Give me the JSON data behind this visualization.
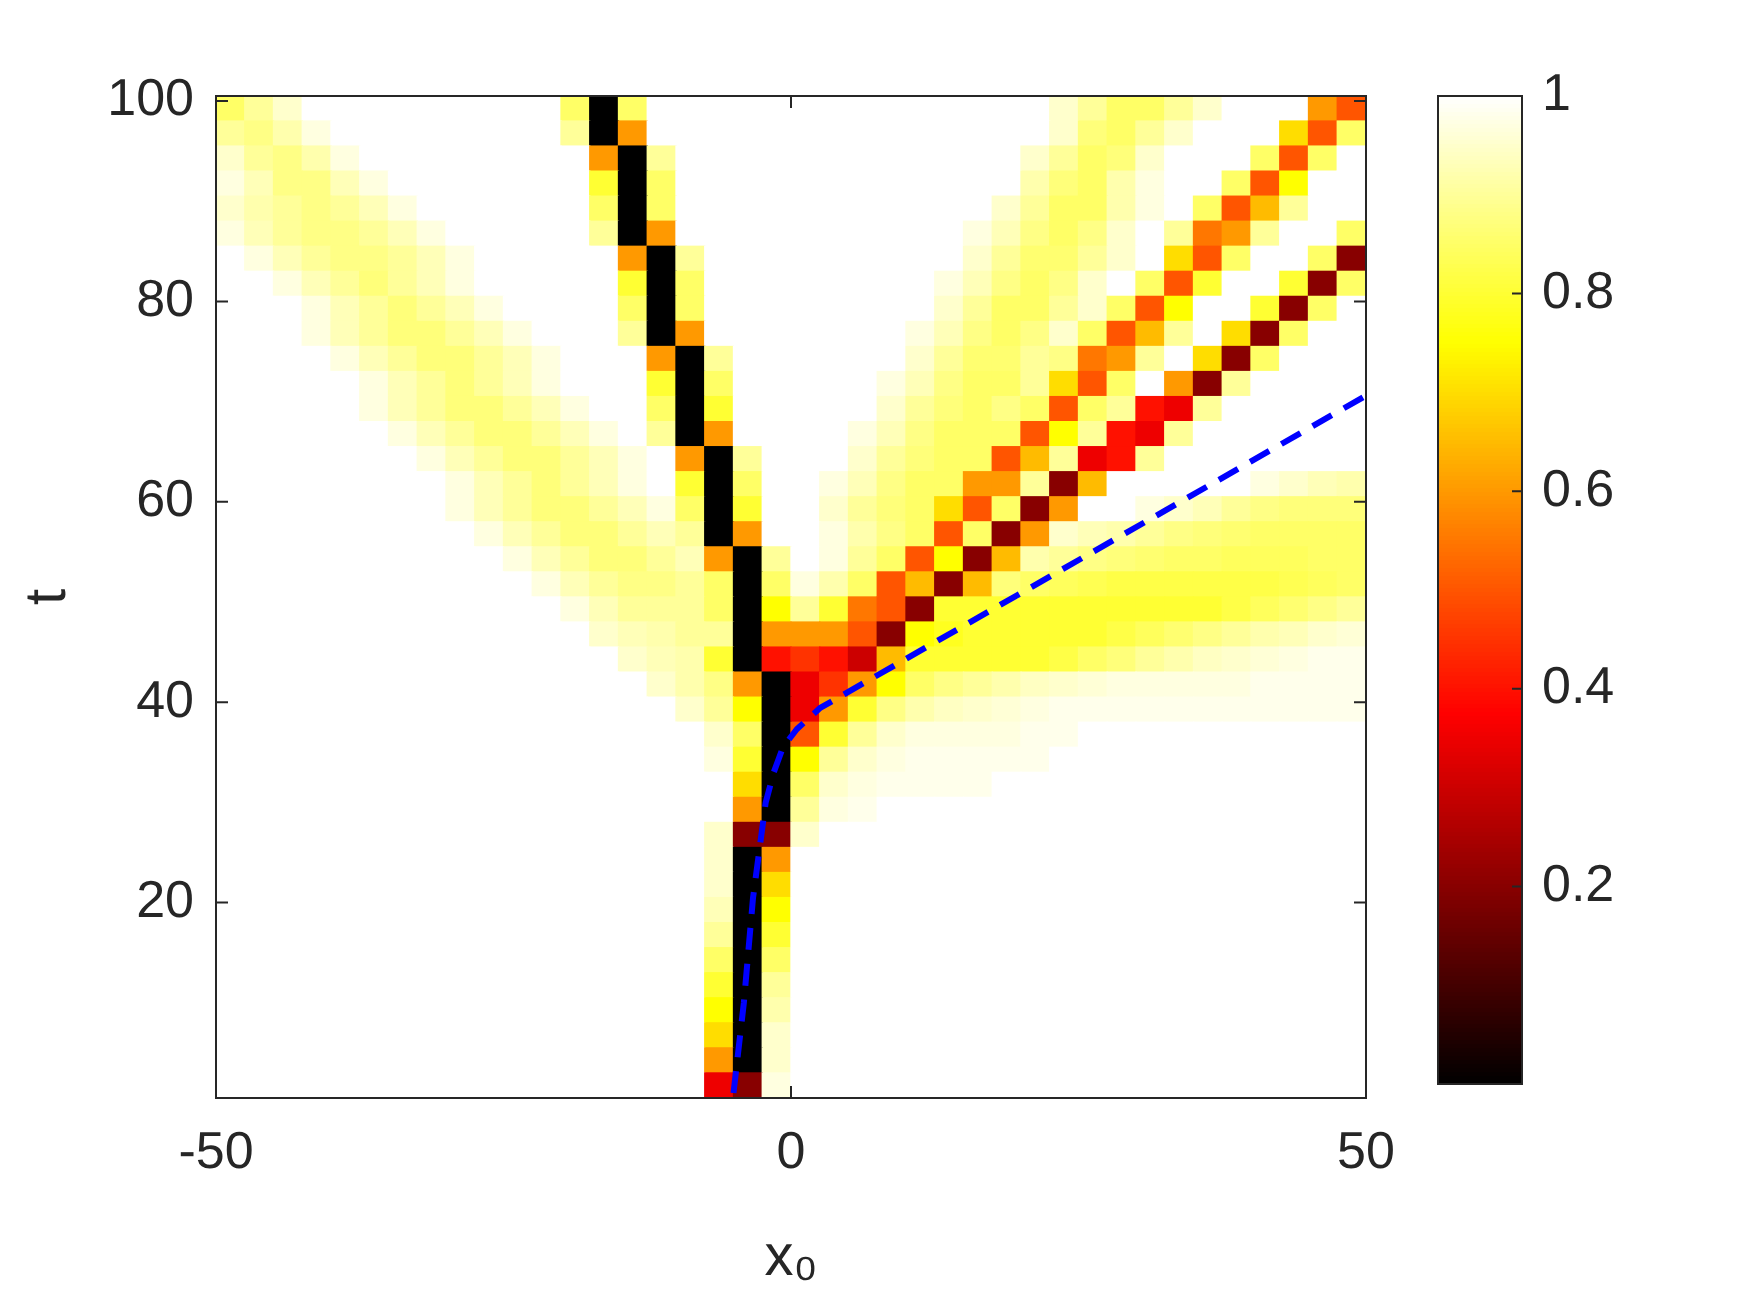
{
  "chart_data": {
    "type": "heatmap",
    "xlabel": "x₀",
    "ylabel": "t",
    "xlim": [
      -50,
      50
    ],
    "xticks": [
      -50,
      0,
      50
    ],
    "ylim": [
      0.5,
      100.5
    ],
    "yticks": [
      20,
      40,
      60,
      80,
      100
    ],
    "clim": [
      0,
      1
    ],
    "cticks": [
      0.2,
      0.4,
      0.6,
      0.8,
      1
    ],
    "cells": [
      [
        0.85,
        0.9,
        0.95,
        1,
        1,
        1,
        1,
        1,
        1,
        1,
        1,
        1,
        0.85,
        0,
        0.85,
        1,
        1,
        1,
        1,
        1,
        1,
        1,
        1,
        1,
        1,
        1,
        1,
        1,
        1,
        0.95,
        0.9,
        0.85,
        0.85,
        0.9,
        0.95,
        1,
        1,
        1,
        0.6,
        0.5
      ],
      [
        0.9,
        0.88,
        0.92,
        0.97,
        1,
        1,
        1,
        1,
        1,
        1,
        1,
        1,
        0.9,
        0,
        0.6,
        1,
        1,
        1,
        1,
        1,
        1,
        1,
        1,
        1,
        1,
        1,
        1,
        1,
        1,
        0.95,
        0.87,
        0.85,
        0.9,
        0.95,
        1,
        1,
        1,
        0.7,
        0.5,
        0.85
      ],
      [
        0.95,
        0.9,
        0.88,
        0.92,
        0.97,
        1,
        1,
        1,
        1,
        1,
        1,
        1,
        1,
        0.6,
        0,
        0.9,
        1,
        1,
        1,
        1,
        1,
        1,
        1,
        1,
        1,
        1,
        1,
        1,
        0.95,
        0.9,
        0.85,
        0.87,
        0.95,
        1,
        1,
        1,
        0.85,
        0.5,
        0.85,
        1
      ],
      [
        0.97,
        0.93,
        0.88,
        0.88,
        0.93,
        0.97,
        1,
        1,
        1,
        1,
        1,
        1,
        1,
        0.8,
        0,
        0.85,
        1,
        1,
        1,
        1,
        1,
        1,
        1,
        1,
        1,
        1,
        1,
        1,
        0.92,
        0.87,
        0.85,
        0.92,
        0.97,
        1,
        1,
        0.85,
        0.5,
        0.75,
        1,
        1
      ],
      [
        0.95,
        0.92,
        0.9,
        0.88,
        0.9,
        0.93,
        0.97,
        1,
        1,
        1,
        1,
        1,
        1,
        0.85,
        0,
        0.85,
        1,
        1,
        1,
        1,
        1,
        1,
        1,
        1,
        1,
        1,
        1,
        0.95,
        0.9,
        0.85,
        0.85,
        0.92,
        0.97,
        1,
        0.85,
        0.5,
        0.65,
        0.9,
        1,
        1
      ],
      [
        0.97,
        0.93,
        0.9,
        0.88,
        0.88,
        0.9,
        0.93,
        0.97,
        1,
        1,
        1,
        1,
        1,
        0.9,
        0,
        0.6,
        1,
        1,
        1,
        1,
        1,
        1,
        1,
        1,
        1,
        1,
        0.97,
        0.93,
        0.88,
        0.85,
        0.88,
        0.95,
        1,
        0.9,
        0.55,
        0.6,
        0.9,
        1,
        1,
        0.85
      ],
      [
        1,
        0.97,
        0.93,
        0.9,
        0.88,
        0.88,
        0.9,
        0.93,
        0.97,
        1,
        1,
        1,
        1,
        1,
        0.6,
        0,
        0.9,
        1,
        1,
        1,
        1,
        1,
        1,
        1,
        1,
        1,
        0.95,
        0.9,
        0.86,
        0.86,
        0.9,
        0.95,
        1,
        0.7,
        0.5,
        0.85,
        1,
        1,
        0.85,
        0.2
      ],
      [
        1,
        1,
        0.97,
        0.93,
        0.9,
        0.87,
        0.9,
        0.93,
        0.97,
        1,
        1,
        1,
        1,
        1,
        0.8,
        0,
        0.85,
        1,
        1,
        1,
        1,
        1,
        1,
        1,
        1,
        0.97,
        0.93,
        0.88,
        0.85,
        0.88,
        0.95,
        1,
        0.85,
        0.5,
        0.8,
        1,
        1,
        0.8,
        0.2,
        0.85
      ],
      [
        1,
        1,
        1,
        0.97,
        0.93,
        0.9,
        0.87,
        0.9,
        0.93,
        0.97,
        1,
        1,
        1,
        1,
        0.85,
        0,
        0.85,
        1,
        1,
        1,
        1,
        1,
        1,
        1,
        1,
        0.95,
        0.9,
        0.85,
        0.85,
        0.9,
        0.95,
        0.85,
        0.5,
        0.75,
        1,
        1,
        0.8,
        0.2,
        0.85,
        1
      ],
      [
        1,
        1,
        1,
        0.97,
        0.93,
        0.9,
        0.87,
        0.87,
        0.9,
        0.93,
        0.97,
        1,
        1,
        1,
        0.9,
        0,
        0.6,
        1,
        1,
        1,
        1,
        1,
        1,
        1,
        0.97,
        0.93,
        0.88,
        0.85,
        0.88,
        0.95,
        0.85,
        0.5,
        0.65,
        0.9,
        1,
        0.7,
        0.2,
        0.85,
        1,
        1
      ],
      [
        1,
        1,
        1,
        1,
        0.97,
        0.93,
        0.9,
        0.87,
        0.87,
        0.9,
        0.93,
        0.97,
        1,
        1,
        1,
        0.6,
        0,
        0.9,
        1,
        1,
        1,
        1,
        1,
        1,
        0.95,
        0.9,
        0.86,
        0.86,
        0.9,
        0.88,
        0.55,
        0.6,
        0.9,
        1,
        0.7,
        0.2,
        0.85,
        1,
        1,
        1
      ],
      [
        1,
        1,
        1,
        1,
        1,
        0.97,
        0.93,
        0.9,
        0.87,
        0.9,
        0.93,
        0.97,
        1,
        1,
        1,
        0.8,
        0,
        0.85,
        1,
        1,
        1,
        1,
        1,
        0.97,
        0.93,
        0.88,
        0.85,
        0.85,
        0.9,
        0.7,
        0.5,
        0.85,
        1,
        0.6,
        0.2,
        0.9,
        1,
        1,
        1,
        1
      ],
      [
        1,
        1,
        1,
        1,
        1,
        0.97,
        0.93,
        0.9,
        0.87,
        0.87,
        0.9,
        0.93,
        0.97,
        1,
        1,
        0.85,
        0,
        0.8,
        1,
        1,
        1,
        1,
        1,
        0.95,
        0.9,
        0.87,
        0.85,
        0.88,
        0.85,
        0.5,
        0.85,
        0.9,
        0.4,
        0.35,
        0.9,
        1,
        1,
        1,
        1,
        1
      ],
      [
        1,
        1,
        1,
        1,
        1,
        1,
        0.97,
        0.93,
        0.9,
        0.87,
        0.87,
        0.9,
        0.93,
        0.97,
        1,
        0.9,
        0,
        0.6,
        1,
        1,
        1,
        1,
        0.97,
        0.93,
        0.88,
        0.85,
        0.85,
        0.85,
        0.5,
        0.75,
        0.9,
        0.4,
        0.35,
        0.9,
        1,
        1,
        1,
        1,
        1,
        1
      ],
      [
        1,
        1,
        1,
        1,
        1,
        1,
        1,
        0.97,
        0.93,
        0.9,
        0.87,
        0.87,
        0.9,
        0.93,
        0.97,
        1,
        0.6,
        0,
        0.9,
        1,
        1,
        1,
        0.95,
        0.9,
        0.87,
        0.85,
        0.85,
        0.5,
        0.65,
        0.9,
        0.35,
        0.4,
        0.9,
        1,
        1,
        1,
        1,
        1,
        1,
        1
      ],
      [
        1,
        1,
        1,
        1,
        1,
        1,
        1,
        1,
        0.97,
        0.93,
        0.9,
        0.87,
        0.9,
        0.93,
        0.97,
        1,
        0.8,
        0,
        0.85,
        1,
        1,
        0.97,
        0.93,
        0.88,
        0.85,
        0.85,
        0.6,
        0.6,
        0.9,
        0.2,
        0.65,
        1,
        1,
        1,
        1,
        1,
        0.97,
        0.95,
        0.93,
        0.92
      ],
      [
        1,
        1,
        1,
        1,
        1,
        1,
        1,
        1,
        0.97,
        0.93,
        0.9,
        0.87,
        0.87,
        0.9,
        0.93,
        0.97,
        0.85,
        0,
        0.8,
        1,
        1,
        0.95,
        0.9,
        0.87,
        0.85,
        0.7,
        0.5,
        0.85,
        0.2,
        0.6,
        1,
        1,
        0.97,
        0.95,
        0.93,
        0.9,
        0.88,
        0.87,
        0.87,
        0.87
      ],
      [
        1,
        1,
        1,
        1,
        1,
        1,
        1,
        1,
        1,
        0.97,
        0.93,
        0.9,
        0.87,
        0.87,
        0.9,
        0.93,
        0.9,
        0,
        0.6,
        1,
        1,
        0.97,
        0.92,
        0.88,
        0.85,
        0.5,
        0.85,
        0.2,
        0.6,
        0.95,
        0.93,
        0.92,
        0.9,
        0.88,
        0.87,
        0.86,
        0.85,
        0.85,
        0.85,
        0.85
      ],
      [
        1,
        1,
        1,
        1,
        1,
        1,
        1,
        1,
        1,
        1,
        0.97,
        0.93,
        0.9,
        0.87,
        0.87,
        0.9,
        0.93,
        0.6,
        0,
        0.9,
        1,
        0.97,
        0.9,
        0.85,
        0.5,
        0.75,
        0.2,
        0.65,
        0.92,
        0.9,
        0.88,
        0.87,
        0.86,
        0.85,
        0.85,
        0.84,
        0.84,
        0.84,
        0.85,
        0.85
      ],
      [
        1,
        1,
        1,
        1,
        1,
        1,
        1,
        1,
        1,
        1,
        1,
        0.97,
        0.93,
        0.9,
        0.88,
        0.88,
        0.9,
        0.85,
        0,
        0.85,
        0.97,
        0.92,
        0.85,
        0.5,
        0.65,
        0.2,
        0.65,
        0.87,
        0.85,
        0.84,
        0.83,
        0.82,
        0.82,
        0.82,
        0.82,
        0.82,
        0.82,
        0.83,
        0.84,
        0.85
      ],
      [
        1,
        1,
        1,
        1,
        1,
        1,
        1,
        1,
        1,
        1,
        1,
        1,
        0.97,
        0.93,
        0.9,
        0.9,
        0.9,
        0.85,
        0,
        0.75,
        0.9,
        0.8,
        0.55,
        0.5,
        0.2,
        0.8,
        0.8,
        0.8,
        0.8,
        0.8,
        0.8,
        0.8,
        0.8,
        0.8,
        0.8,
        0.82,
        0.84,
        0.86,
        0.88,
        0.9
      ],
      [
        1,
        1,
        1,
        1,
        1,
        1,
        1,
        1,
        1,
        1,
        1,
        1,
        1,
        0.95,
        0.93,
        0.92,
        0.9,
        0.9,
        0,
        0.6,
        0.6,
        0.6,
        0.5,
        0.2,
        0.75,
        0.78,
        0.8,
        0.8,
        0.8,
        0.8,
        0.8,
        0.82,
        0.84,
        0.86,
        0.88,
        0.9,
        0.92,
        0.93,
        0.95,
        0.96
      ],
      [
        1,
        1,
        1,
        1,
        1,
        1,
        1,
        1,
        1,
        1,
        1,
        1,
        1,
        1,
        0.95,
        0.93,
        0.92,
        0.8,
        0,
        0.4,
        0.45,
        0.4,
        0.3,
        0.65,
        0.8,
        0.8,
        0.8,
        0.8,
        0.8,
        0.82,
        0.85,
        0.87,
        0.9,
        0.92,
        0.94,
        0.95,
        0.96,
        0.97,
        0.98,
        0.98
      ],
      [
        1,
        1,
        1,
        1,
        1,
        1,
        1,
        1,
        1,
        1,
        1,
        1,
        1,
        1,
        1,
        0.95,
        0.92,
        0.88,
        0.6,
        0,
        0.35,
        0.45,
        0.6,
        0.75,
        0.85,
        0.88,
        0.9,
        0.92,
        0.94,
        0.95,
        0.96,
        0.97,
        0.97,
        0.97,
        0.97,
        0.97,
        0.98,
        0.98,
        0.98,
        0.98
      ],
      [
        1,
        1,
        1,
        1,
        1,
        1,
        1,
        1,
        1,
        1,
        1,
        1,
        1,
        1,
        1,
        1,
        0.95,
        0.9,
        0.75,
        0,
        0.35,
        0.6,
        0.8,
        0.88,
        0.92,
        0.94,
        0.95,
        0.96,
        0.97,
        0.98,
        0.98,
        0.98,
        0.98,
        0.98,
        0.98,
        0.98,
        0.98,
        0.98,
        0.98,
        0.98
      ],
      [
        1,
        1,
        1,
        1,
        1,
        1,
        1,
        1,
        1,
        1,
        1,
        1,
        1,
        1,
        1,
        1,
        1,
        0.95,
        0.85,
        0,
        0.5,
        0.8,
        0.9,
        0.95,
        0.97,
        0.97,
        0.97,
        0.97,
        0.98,
        0.98,
        1,
        1,
        1,
        1,
        1,
        1,
        1,
        1,
        1,
        1
      ],
      [
        1,
        1,
        1,
        1,
        1,
        1,
        1,
        1,
        1,
        1,
        1,
        1,
        1,
        1,
        1,
        1,
        1,
        0.97,
        0.8,
        0,
        0.75,
        0.9,
        0.95,
        0.97,
        0.98,
        0.98,
        0.98,
        0.98,
        0.98,
        1,
        1,
        1,
        1,
        1,
        1,
        1,
        1,
        1,
        1,
        1
      ],
      [
        1,
        1,
        1,
        1,
        1,
        1,
        1,
        1,
        1,
        1,
        1,
        1,
        1,
        1,
        1,
        1,
        1,
        1,
        0.7,
        0,
        0.85,
        0.95,
        0.97,
        0.98,
        0.98,
        0.98,
        0.98,
        1,
        1,
        1,
        1,
        1,
        1,
        1,
        1,
        1,
        1,
        1,
        1,
        1
      ],
      [
        1,
        1,
        1,
        1,
        1,
        1,
        1,
        1,
        1,
        1,
        1,
        1,
        1,
        1,
        1,
        1,
        1,
        1,
        0.6,
        0,
        0.9,
        0.97,
        0.98,
        1,
        1,
        1,
        1,
        1,
        1,
        1,
        1,
        1,
        1,
        1,
        1,
        1,
        1,
        1,
        1,
        1
      ],
      [
        1,
        1,
        1,
        1,
        1,
        1,
        1,
        1,
        1,
        1,
        1,
        1,
        1,
        1,
        1,
        1,
        1,
        0.95,
        0.2,
        0.2,
        0.95,
        1,
        1,
        1,
        1,
        1,
        1,
        1,
        1,
        1,
        1,
        1,
        1,
        1,
        1,
        1,
        1,
        1,
        1,
        1
      ],
      [
        1,
        1,
        1,
        1,
        1,
        1,
        1,
        1,
        1,
        1,
        1,
        1,
        1,
        1,
        1,
        1,
        1,
        0.95,
        0,
        0.6,
        1,
        1,
        1,
        1,
        1,
        1,
        1,
        1,
        1,
        1,
        1,
        1,
        1,
        1,
        1,
        1,
        1,
        1,
        1,
        1
      ],
      [
        1,
        1,
        1,
        1,
        1,
        1,
        1,
        1,
        1,
        1,
        1,
        1,
        1,
        1,
        1,
        1,
        1,
        0.95,
        0,
        0.7,
        1,
        1,
        1,
        1,
        1,
        1,
        1,
        1,
        1,
        1,
        1,
        1,
        1,
        1,
        1,
        1,
        1,
        1,
        1,
        1
      ],
      [
        1,
        1,
        1,
        1,
        1,
        1,
        1,
        1,
        1,
        1,
        1,
        1,
        1,
        1,
        1,
        1,
        1,
        0.93,
        0,
        0.75,
        1,
        1,
        1,
        1,
        1,
        1,
        1,
        1,
        1,
        1,
        1,
        1,
        1,
        1,
        1,
        1,
        1,
        1,
        1,
        1
      ],
      [
        1,
        1,
        1,
        1,
        1,
        1,
        1,
        1,
        1,
        1,
        1,
        1,
        1,
        1,
        1,
        1,
        1,
        0.9,
        0,
        0.8,
        1,
        1,
        1,
        1,
        1,
        1,
        1,
        1,
        1,
        1,
        1,
        1,
        1,
        1,
        1,
        1,
        1,
        1,
        1,
        1
      ],
      [
        1,
        1,
        1,
        1,
        1,
        1,
        1,
        1,
        1,
        1,
        1,
        1,
        1,
        1,
        1,
        1,
        1,
        0.85,
        0,
        0.85,
        1,
        1,
        1,
        1,
        1,
        1,
        1,
        1,
        1,
        1,
        1,
        1,
        1,
        1,
        1,
        1,
        1,
        1,
        1,
        1
      ],
      [
        1,
        1,
        1,
        1,
        1,
        1,
        1,
        1,
        1,
        1,
        1,
        1,
        1,
        1,
        1,
        1,
        1,
        0.8,
        0,
        0.9,
        1,
        1,
        1,
        1,
        1,
        1,
        1,
        1,
        1,
        1,
        1,
        1,
        1,
        1,
        1,
        1,
        1,
        1,
        1,
        1
      ],
      [
        1,
        1,
        1,
        1,
        1,
        1,
        1,
        1,
        1,
        1,
        1,
        1,
        1,
        1,
        1,
        1,
        1,
        0.75,
        0,
        0.92,
        1,
        1,
        1,
        1,
        1,
        1,
        1,
        1,
        1,
        1,
        1,
        1,
        1,
        1,
        1,
        1,
        1,
        1,
        1,
        1
      ],
      [
        1,
        1,
        1,
        1,
        1,
        1,
        1,
        1,
        1,
        1,
        1,
        1,
        1,
        1,
        1,
        1,
        1,
        0.7,
        0,
        0.95,
        1,
        1,
        1,
        1,
        1,
        1,
        1,
        1,
        1,
        1,
        1,
        1,
        1,
        1,
        1,
        1,
        1,
        1,
        1,
        1
      ],
      [
        1,
        1,
        1,
        1,
        1,
        1,
        1,
        1,
        1,
        1,
        1,
        1,
        1,
        1,
        1,
        1,
        1,
        0.6,
        0,
        0.95,
        1,
        1,
        1,
        1,
        1,
        1,
        1,
        1,
        1,
        1,
        1,
        1,
        1,
        1,
        1,
        1,
        1,
        1,
        1,
        1
      ],
      [
        1,
        1,
        1,
        1,
        1,
        1,
        1,
        1,
        1,
        1,
        1,
        1,
        1,
        1,
        1,
        1,
        1,
        0.35,
        0.2,
        0.97,
        1,
        1,
        1,
        1,
        1,
        1,
        1,
        1,
        1,
        1,
        1,
        1,
        1,
        1,
        1,
        1,
        1,
        1,
        1,
        1
      ]
    ],
    "series": [
      {
        "type": "line",
        "color": "#0000ff",
        "line_style": "dashed",
        "x": [
          -5,
          -4.1,
          -3.3,
          -2.2,
          -1.5,
          -0.7,
          0.5,
          2.5,
          50
        ],
        "values": [
          1,
          10,
          20.5,
          30,
          33,
          35.5,
          37.3,
          39.4,
          70.6
        ]
      }
    ]
  }
}
